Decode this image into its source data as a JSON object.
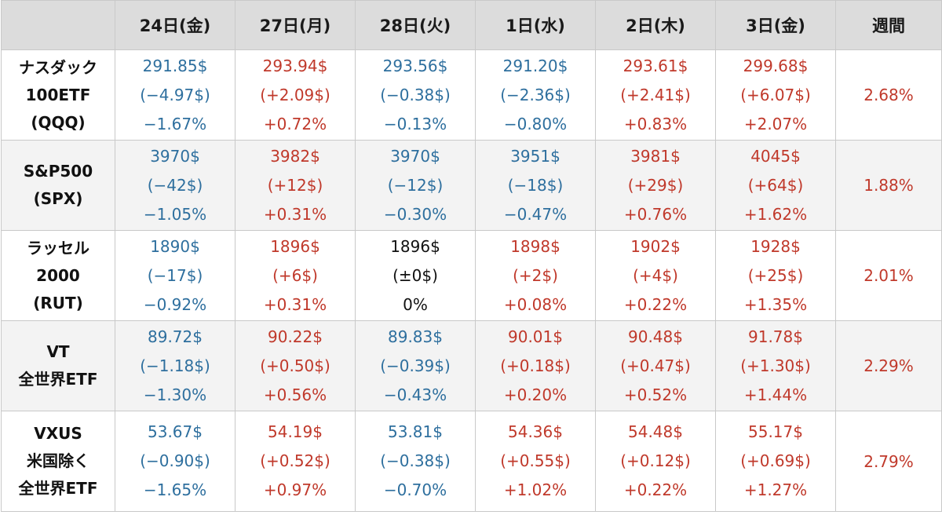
{
  "columns": [
    "24日(金)",
    "27日(月)",
    "28日(火)",
    "1日(水)",
    "2日(木)",
    "3日(金)",
    "週間"
  ],
  "colors": {
    "up": "#c0392b",
    "down": "#2e6f9e",
    "flat": "#111111",
    "header_bg": "#dcdcdc"
  },
  "rows": [
    {
      "label": [
        "ナスダック",
        "100ETF",
        "(QQQ)"
      ],
      "cells": [
        {
          "trend": "down",
          "price": "291.85$",
          "change": "(−4.97$)",
          "pct": "−1.67%"
        },
        {
          "trend": "up",
          "price": "293.94$",
          "change": "(+2.09$)",
          "pct": "+0.72%"
        },
        {
          "trend": "down",
          "price": "293.56$",
          "change": "(−0.38$)",
          "pct": "−0.13%"
        },
        {
          "trend": "down",
          "price": "291.20$",
          "change": "(−2.36$)",
          "pct": "−0.80%"
        },
        {
          "trend": "up",
          "price": "293.61$",
          "change": "(+2.41$)",
          "pct": "+0.83%"
        },
        {
          "trend": "up",
          "price": "299.68$",
          "change": "(+6.07$)",
          "pct": "+2.07%"
        }
      ],
      "weekly": "2.68%"
    },
    {
      "label": [
        "S&P500",
        "(SPX)"
      ],
      "cells": [
        {
          "trend": "down",
          "price": "3970$",
          "change": "(−42$)",
          "pct": "−1.05%"
        },
        {
          "trend": "up",
          "price": "3982$",
          "change": "(+12$)",
          "pct": "+0.31%"
        },
        {
          "trend": "down",
          "price": "3970$",
          "change": "(−12$)",
          "pct": "−0.30%"
        },
        {
          "trend": "down",
          "price": "3951$",
          "change": "(−18$)",
          "pct": "−0.47%"
        },
        {
          "trend": "up",
          "price": "3981$",
          "change": "(+29$)",
          "pct": "+0.76%"
        },
        {
          "trend": "up",
          "price": "4045$",
          "change": "(+64$)",
          "pct": "+1.62%"
        }
      ],
      "weekly": "1.88%"
    },
    {
      "label": [
        "ラッセル",
        "2000",
        "(RUT)"
      ],
      "cells": [
        {
          "trend": "down",
          "price": "1890$",
          "change": "(−17$)",
          "pct": "−0.92%"
        },
        {
          "trend": "up",
          "price": "1896$",
          "change": "(+6$)",
          "pct": "+0.31%"
        },
        {
          "trend": "flat",
          "price": "1896$",
          "change": "(±0$)",
          "pct": "0%"
        },
        {
          "trend": "up",
          "price": "1898$",
          "change": "(+2$)",
          "pct": "+0.08%"
        },
        {
          "trend": "up",
          "price": "1902$",
          "change": "(+4$)",
          "pct": "+0.22%"
        },
        {
          "trend": "up",
          "price": "1928$",
          "change": "(+25$)",
          "pct": "+1.35%"
        }
      ],
      "weekly": "2.01%"
    },
    {
      "label": [
        "VT",
        "全世界ETF"
      ],
      "cells": [
        {
          "trend": "down",
          "price": "89.72$",
          "change": "(−1.18$)",
          "pct": "−1.30%"
        },
        {
          "trend": "up",
          "price": "90.22$",
          "change": "(+0.50$)",
          "pct": "+0.56%"
        },
        {
          "trend": "down",
          "price": "89.83$",
          "change": "(−0.39$)",
          "pct": "−0.43%"
        },
        {
          "trend": "up",
          "price": "90.01$",
          "change": "(+0.18$)",
          "pct": "+0.20%"
        },
        {
          "trend": "up",
          "price": "90.48$",
          "change": "(+0.47$)",
          "pct": "+0.52%"
        },
        {
          "trend": "up",
          "price": "91.78$",
          "change": "(+1.30$)",
          "pct": "+1.44%"
        }
      ],
      "weekly": "2.29%"
    },
    {
      "label": [
        "VXUS",
        "米国除く",
        "全世界ETF"
      ],
      "cells": [
        {
          "trend": "down",
          "price": "53.67$",
          "change": "(−0.90$)",
          "pct": "−1.65%"
        },
        {
          "trend": "up",
          "price": "54.19$",
          "change": "(+0.52$)",
          "pct": "+0.97%"
        },
        {
          "trend": "down",
          "price": "53.81$",
          "change": "(−0.38$)",
          "pct": "−0.70%"
        },
        {
          "trend": "up",
          "price": "54.36$",
          "change": "(+0.55$)",
          "pct": "+1.02%"
        },
        {
          "trend": "up",
          "price": "54.48$",
          "change": "(+0.12$)",
          "pct": "+0.22%"
        },
        {
          "trend": "up",
          "price": "55.17$",
          "change": "(+0.69$)",
          "pct": "+1.27%"
        }
      ],
      "weekly": "2.79%"
    }
  ]
}
